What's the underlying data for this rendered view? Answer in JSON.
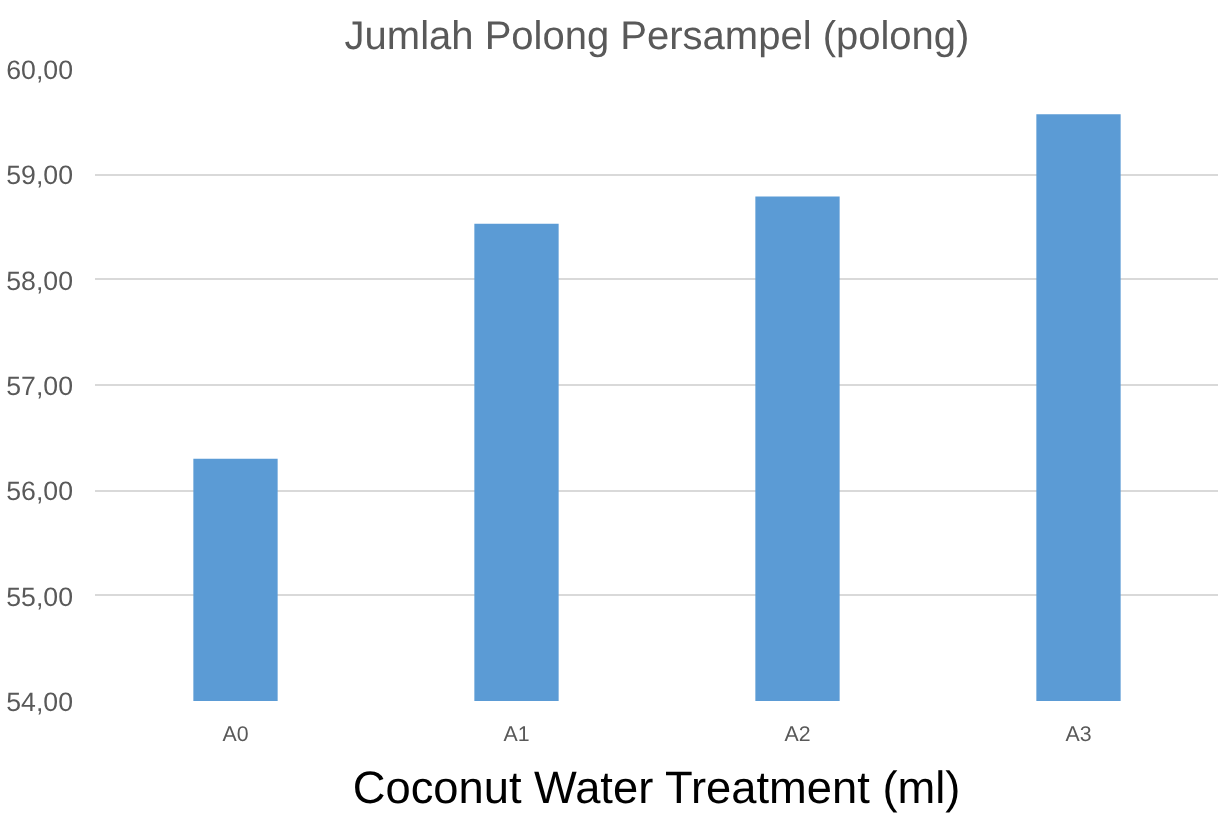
{
  "chart_data": {
    "type": "bar",
    "title": "Jumlah Polong Persampel (polong)",
    "xlabel": "Coconut Water Treatment (ml)",
    "categories": [
      "A0",
      "A1",
      "A2",
      "A3"
    ],
    "values": [
      56.3,
      58.53,
      58.79,
      59.57
    ],
    "color": "#5b9bd5",
    "ylim": [
      54,
      60
    ],
    "yticks": [
      {
        "value": 54,
        "label": "54,00"
      },
      {
        "value": 55,
        "label": "55,00"
      },
      {
        "value": 56,
        "label": "56,00"
      },
      {
        "value": 57,
        "label": "57,00"
      },
      {
        "value": 58,
        "label": "58,00"
      },
      {
        "value": 59,
        "label": "59,00"
      },
      {
        "value": 60,
        "label": "60,00"
      }
    ],
    "grid": "y"
  }
}
